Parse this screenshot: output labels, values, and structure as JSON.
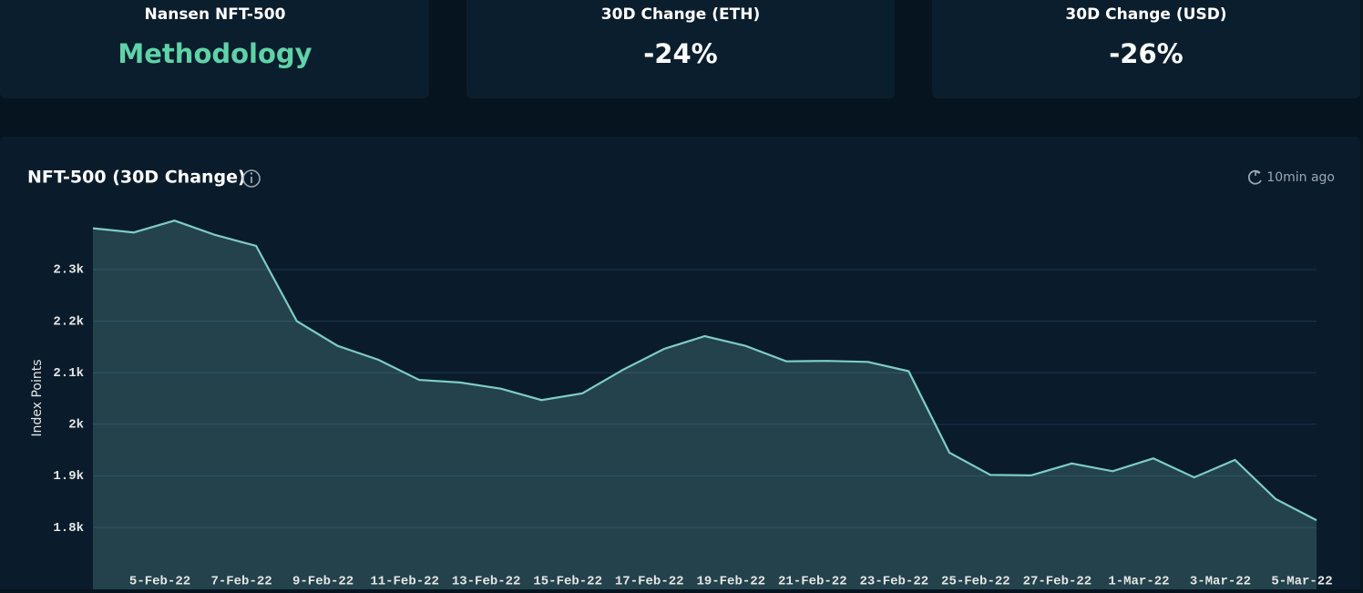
{
  "cards": [
    {
      "label": "Nansen NFT-500",
      "value": "Methodology"
    },
    {
      "label": "30D Change (ETH)",
      "value": "-24%"
    },
    {
      "label": "30D Change (USD)",
      "value": "-26%"
    }
  ],
  "chart_data": {
    "type": "line",
    "title": "NFT-500 (30D Change)",
    "updated": "10min ago",
    "ylabel": "Index Points",
    "categories": [
      null,
      null,
      "5-Feb-22",
      null,
      "7-Feb-22",
      null,
      "9-Feb-22",
      null,
      "11-Feb-22",
      null,
      "13-Feb-22",
      null,
      "15-Feb-22",
      null,
      "17-Feb-22",
      null,
      "19-Feb-22",
      null,
      "21-Feb-22",
      null,
      "23-Feb-22",
      null,
      "25-Feb-22",
      null,
      "27-Feb-22",
      null,
      "1-Mar-22",
      null,
      "3-Mar-22",
      null,
      "5-Mar-22"
    ],
    "values": [
      2380,
      2372,
      2395,
      2367,
      2346,
      2200,
      2152,
      2125,
      2086,
      2081,
      2069,
      2047,
      2060,
      2106,
      2146,
      2171,
      2152,
      2122,
      2123,
      2121,
      2103,
      1945,
      1902,
      1901,
      1924,
      1909,
      1934,
      1897,
      1931,
      1855,
      1814
    ],
    "color": "#7ecdc4",
    "ylim": [
      1680,
      2420
    ],
    "yticks": [
      {
        "value": 1800,
        "label": "1.8k"
      },
      {
        "value": 1900,
        "label": "1.9k"
      },
      {
        "value": 2000,
        "label": "2k"
      },
      {
        "value": 2100,
        "label": "2.1k"
      },
      {
        "value": 2200,
        "label": "2.2k"
      },
      {
        "value": 2300,
        "label": "2.3k"
      }
    ],
    "grid": true
  }
}
